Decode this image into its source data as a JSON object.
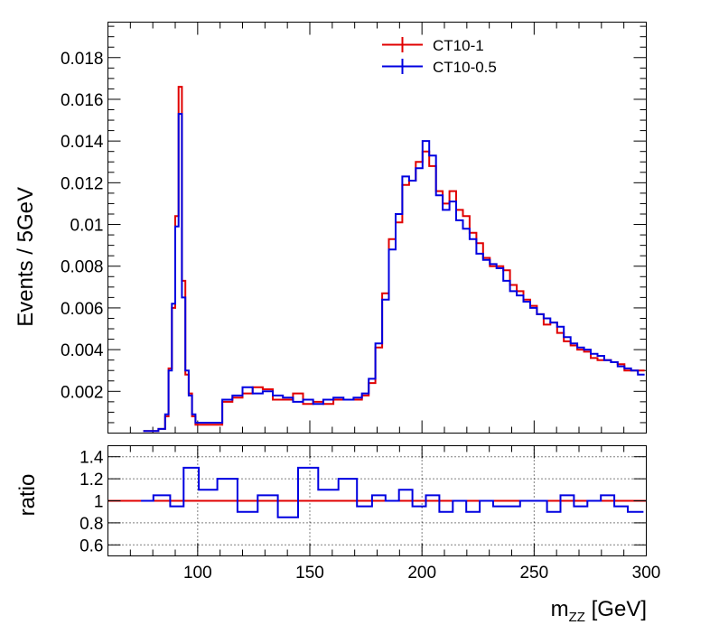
{
  "chart_data": [
    {
      "type": "line",
      "panel": "main",
      "ylabel": "Events / 5GeV",
      "xlabel": "",
      "xlim": [
        60,
        300
      ],
      "ylim": [
        0,
        0.0197
      ],
      "yticks": [
        0.002,
        0.004,
        0.006,
        0.008,
        0.01,
        0.012,
        0.014,
        0.016,
        0.018
      ],
      "ytick_labels": [
        "0.002",
        "0.004",
        "0.006",
        "0.008",
        "0.01",
        "0.012",
        "0.014",
        "0.016",
        "0.018"
      ],
      "grid": false,
      "legend_position": "top-center",
      "bin_width": 1.5,
      "series": [
        {
          "name": "CT10-1",
          "color": "#e00000",
          "x": [
            75.75,
            80.25,
            84.75,
            86.25,
            87.75,
            89.25,
            90.75,
            92.25,
            93.75,
            95.25,
            96.75,
            98.25,
            99.75,
            104.25,
            108.75,
            113.25,
            117.75,
            122.25,
            126.75,
            131.25,
            135.75,
            140.25,
            144.75,
            149.25,
            153.75,
            158.25,
            162.75,
            167.25,
            171.75,
            174.75,
            177.75,
            180.75,
            183.75,
            186.75,
            189.75,
            192.75,
            195.75,
            198.75,
            201.75,
            204.75,
            207.75,
            210.75,
            213.75,
            216.75,
            219.75,
            222.75,
            225.75,
            228.75,
            231.75,
            234.75,
            237.75,
            240.75,
            243.75,
            246.75,
            249.75,
            252.75,
            255.75,
            258.75,
            261.75,
            264.75,
            267.75,
            270.75,
            273.75,
            276.75,
            279.75,
            282.75,
            285.75,
            288.75,
            291.75,
            294.75,
            297.75
          ],
          "values": [
            0.0001,
            0.0001,
            0.0002,
            0.0008,
            0.0031,
            0.006,
            0.0104,
            0.0166,
            0.0073,
            0.0028,
            0.0019,
            0.0008,
            0.0004,
            0.0004,
            0.0004,
            0.0015,
            0.0017,
            0.0019,
            0.0022,
            0.0021,
            0.0016,
            0.0016,
            0.0019,
            0.0014,
            0.0015,
            0.0014,
            0.0016,
            0.0016,
            0.0016,
            0.0018,
            0.0024,
            0.0041,
            0.0067,
            0.0093,
            0.0101,
            0.0119,
            0.0121,
            0.013,
            0.0135,
            0.0128,
            0.0116,
            0.011,
            0.0116,
            0.0107,
            0.0104,
            0.0096,
            0.0091,
            0.0084,
            0.008,
            0.008,
            0.0078,
            0.0071,
            0.0068,
            0.0064,
            0.0061,
            0.0057,
            0.0052,
            0.0053,
            0.0048,
            0.0044,
            0.0042,
            0.004,
            0.0039,
            0.0036,
            0.0035,
            0.0035,
            0.0034,
            0.0033,
            0.003,
            0.003,
            0.003
          ]
        },
        {
          "name": "CT10-0.5",
          "color": "#0000e0",
          "x": [
            75.75,
            80.25,
            84.75,
            86.25,
            87.75,
            89.25,
            90.75,
            92.25,
            93.75,
            95.25,
            96.75,
            98.25,
            99.75,
            104.25,
            108.75,
            113.25,
            117.75,
            122.25,
            126.75,
            131.25,
            135.75,
            140.25,
            144.75,
            149.25,
            153.75,
            158.25,
            162.75,
            167.25,
            171.75,
            174.75,
            177.75,
            180.75,
            183.75,
            186.75,
            189.75,
            192.75,
            195.75,
            198.75,
            201.75,
            204.75,
            207.75,
            210.75,
            213.75,
            216.75,
            219.75,
            222.75,
            225.75,
            228.75,
            231.75,
            234.75,
            237.75,
            240.75,
            243.75,
            246.75,
            249.75,
            252.75,
            255.75,
            258.75,
            261.75,
            264.75,
            267.75,
            270.75,
            273.75,
            276.75,
            279.75,
            282.75,
            285.75,
            288.75,
            291.75,
            294.75,
            297.75
          ],
          "values": [
            0.0001,
            0.0001,
            0.0002,
            0.0009,
            0.003,
            0.0062,
            0.0099,
            0.0153,
            0.0065,
            0.003,
            0.0018,
            0.0009,
            0.0005,
            0.0005,
            0.0005,
            0.0016,
            0.0018,
            0.0022,
            0.0019,
            0.002,
            0.0018,
            0.0017,
            0.0015,
            0.0016,
            0.0014,
            0.0016,
            0.0017,
            0.0016,
            0.0017,
            0.0019,
            0.0026,
            0.0043,
            0.0064,
            0.0088,
            0.0105,
            0.0123,
            0.0121,
            0.0127,
            0.014,
            0.0133,
            0.0114,
            0.0107,
            0.0111,
            0.0102,
            0.0098,
            0.0093,
            0.0086,
            0.0083,
            0.0081,
            0.0079,
            0.0073,
            0.0068,
            0.0066,
            0.0063,
            0.006,
            0.0057,
            0.0055,
            0.0053,
            0.0051,
            0.0046,
            0.0043,
            0.0041,
            0.004,
            0.0038,
            0.0037,
            0.0035,
            0.0034,
            0.0032,
            0.0031,
            0.003,
            0.0028
          ]
        }
      ]
    },
    {
      "type": "line",
      "panel": "ratio",
      "ylabel": "ratio",
      "xlabel": "m_{ZZ} [GeV]",
      "xlim": [
        60,
        300
      ],
      "ylim": [
        0.5,
        1.5
      ],
      "xticks": [
        100,
        150,
        200,
        250,
        300
      ],
      "xtick_labels": [
        "100",
        "150",
        "200",
        "250",
        "300"
      ],
      "yticks": [
        0.6,
        0.8,
        1,
        1.2,
        1.4
      ],
      "ytick_labels": [
        "0.6",
        "0.8",
        "1",
        "1.2",
        "1.4"
      ],
      "grid": true,
      "bin_width": 1.5,
      "series": [
        {
          "name": "CT10-1",
          "color": "#e00000",
          "x": [
            60,
            300
          ],
          "values": [
            1,
            1
          ]
        },
        {
          "name": "CT10-0.5",
          "color": "#0000e0",
          "x": [
            75.75,
            84.75,
            90.75,
            96.75,
            104.25,
            113.25,
            122.25,
            131.25,
            140.25,
            149.25,
            158.25,
            167.25,
            174.75,
            180.75,
            186.75,
            192.75,
            198.75,
            204.75,
            210.75,
            216.75,
            222.75,
            228.75,
            234.75,
            240.75,
            246.75,
            252.75,
            258.75,
            264.75,
            270.75,
            276.75,
            282.75,
            288.75,
            294.75
          ],
          "values": [
            1.0,
            1.05,
            0.95,
            1.3,
            1.1,
            1.2,
            0.9,
            1.05,
            0.85,
            1.3,
            1.1,
            1.2,
            0.95,
            1.05,
            1.0,
            1.1,
            0.95,
            1.05,
            0.9,
            1.0,
            0.9,
            1.0,
            0.95,
            0.95,
            1.0,
            1.0,
            0.9,
            1.05,
            0.95,
            1.0,
            1.05,
            0.95,
            0.9
          ]
        }
      ]
    }
  ]
}
